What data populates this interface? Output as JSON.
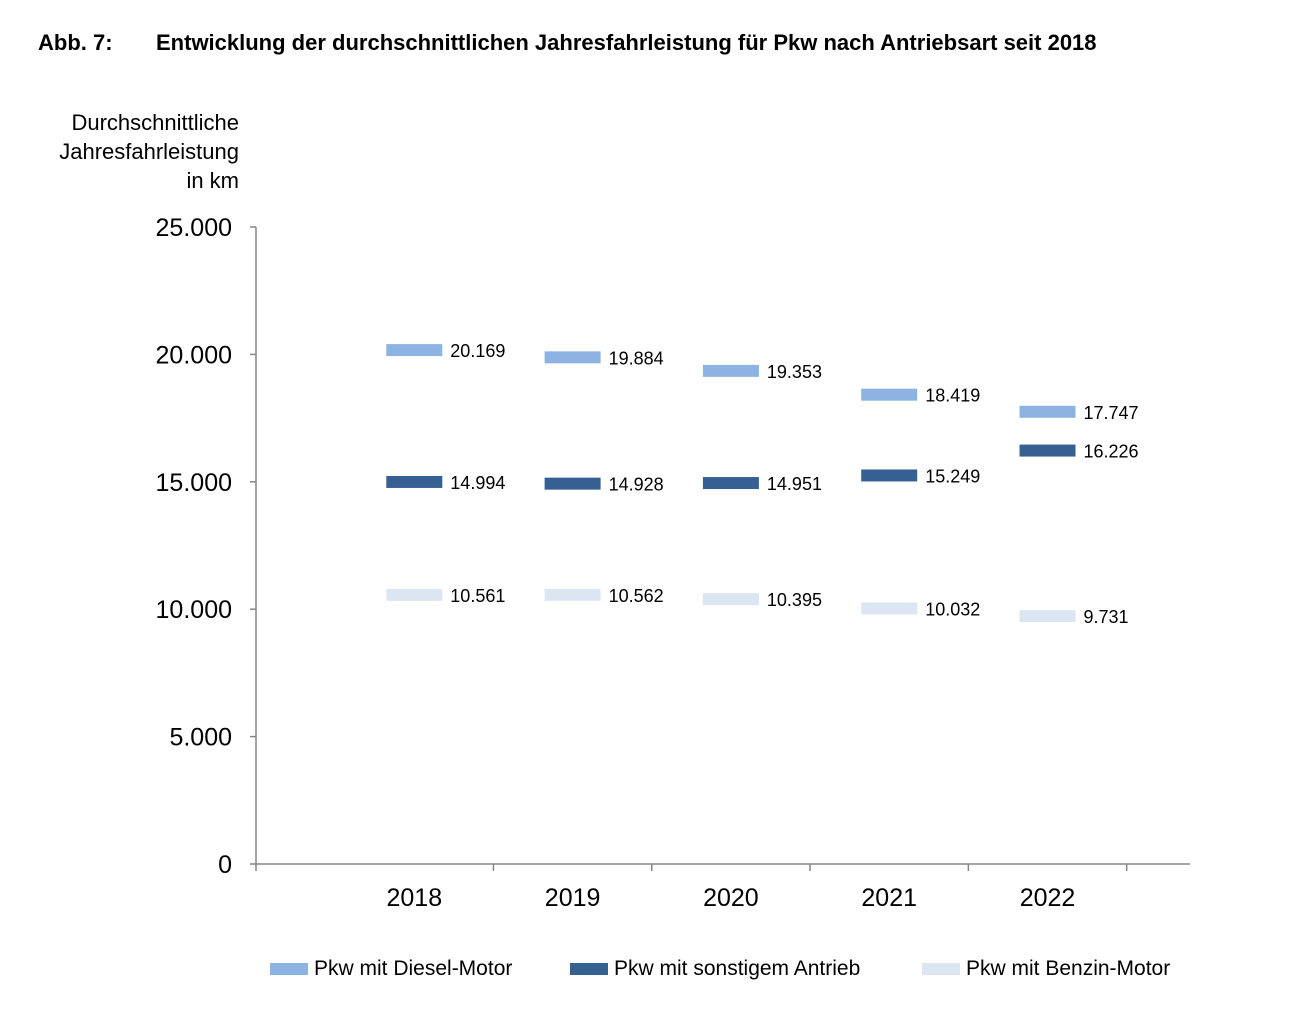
{
  "title": {
    "number": "Abb. 7:",
    "text": "Entwicklung der durchschnittlichen Jahresfahrleistung für Pkw nach Antriebsart seit 2018"
  },
  "chart_data": {
    "type": "line",
    "title": "Entwicklung der durchschnittlichen Jahresfahrleistung für Pkw nach Antriebsart seit 2018",
    "ylabel_lines": [
      "Durchschnittliche",
      "Jahresfahrleistung",
      "in km"
    ],
    "xlabel": "",
    "categories": [
      "2018",
      "2019",
      "2020",
      "2021",
      "2022"
    ],
    "ylim": [
      0,
      25000
    ],
    "yticks": [
      0,
      5000,
      10000,
      15000,
      20000,
      25000
    ],
    "ytick_labels": [
      "0",
      "5.000",
      "10.000",
      "15.000",
      "20.000",
      "25.000"
    ],
    "grid": false,
    "legend_position": "bottom",
    "series": [
      {
        "name": "Pkw mit Diesel-Motor",
        "color": "#8DB3E2",
        "values": [
          20169,
          19884,
          19353,
          18419,
          17747
        ],
        "labels": [
          "20.169",
          "19.884",
          "19.353",
          "18.419",
          "17.747"
        ]
      },
      {
        "name": "Pkw mit sonstigem Antrieb",
        "color": "#376092",
        "values": [
          14994,
          14928,
          14951,
          15249,
          16226
        ],
        "labels": [
          "14.994",
          "14.928",
          "14.951",
          "15.249",
          "16.226"
        ]
      },
      {
        "name": "Pkw mit Benzin-Motor",
        "color": "#DCE6F2",
        "values": [
          10561,
          10562,
          10395,
          10032,
          9731
        ],
        "labels": [
          "10.561",
          "10.562",
          "10.395",
          "10.032",
          "9.731"
        ]
      }
    ]
  }
}
